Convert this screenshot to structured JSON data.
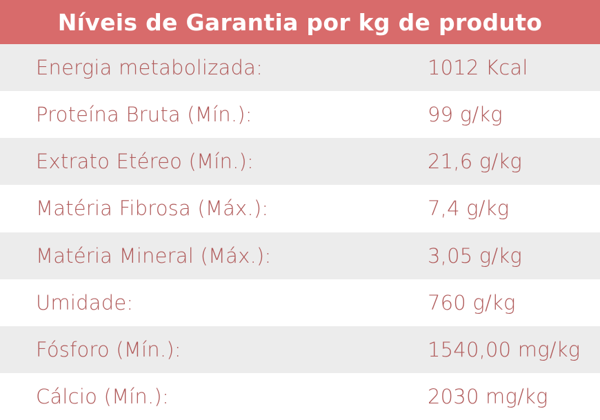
{
  "table": {
    "title": "Níveis de Garantia por kg de produto",
    "rows": [
      {
        "label": "Energia metabolizada:",
        "value": "1012 Kcal"
      },
      {
        "label": "Proteína Bruta (Mín.):",
        "value": "99 g/kg"
      },
      {
        "label": "Extrato Etéreo (Mín.):",
        "value": "21,6 g/kg"
      },
      {
        "label": "Matéria Fibrosa (Máx.):",
        "value": "7,4 g/kg"
      },
      {
        "label": "Matéria Mineral (Máx.):",
        "value": "3,05 g/kg"
      },
      {
        "label": "Umidade:",
        "value": "760 g/kg"
      },
      {
        "label": "Fósforo (Mín.):",
        "value": "1540,00 mg/kg"
      },
      {
        "label": "Cálcio (Mín.):",
        "value": "2030 mg/kg"
      }
    ]
  },
  "colors": {
    "header_bg": "#d86b6b",
    "header_text": "#ffffff",
    "row_shaded": "#ececec",
    "row_plain": "#ffffff",
    "text": "#b05a5a"
  }
}
